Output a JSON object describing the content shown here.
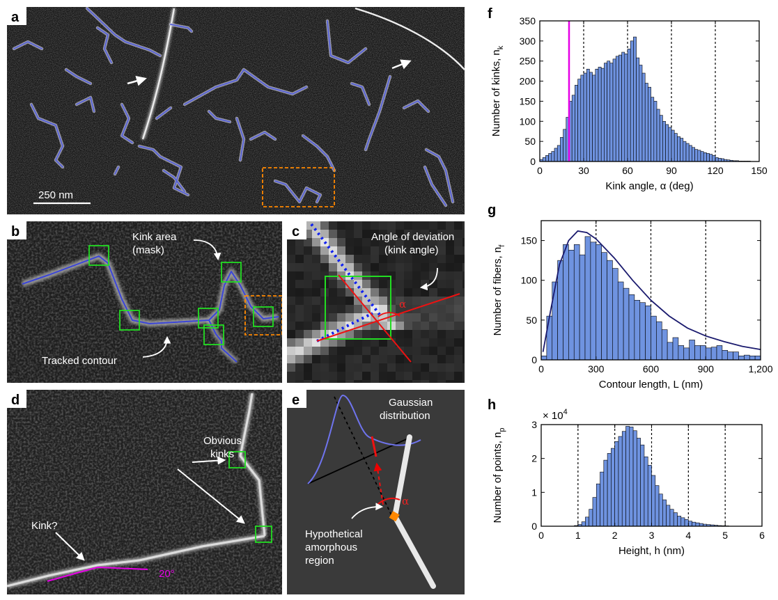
{
  "panels": {
    "a": {
      "label": "a",
      "scale_bar": "250 nm"
    },
    "b": {
      "label": "b",
      "kink_area": [
        "Kink area",
        "(mask)"
      ],
      "tracked": "Tracked contour"
    },
    "c": {
      "label": "c",
      "deviation": [
        "Angle of deviation",
        "(kink angle)"
      ],
      "alpha": "α"
    },
    "d": {
      "label": "d",
      "obvious": [
        "Obvious",
        "kinks"
      ],
      "kinkq": "Kink?",
      "angle": "20°"
    },
    "e": {
      "label": "e",
      "gaussian": [
        "Gaussian",
        "distribution"
      ],
      "alpha": "α",
      "region": [
        "Hypothetical",
        "amorphous",
        "region"
      ]
    },
    "f": {
      "label": "f"
    },
    "g": {
      "label": "g"
    },
    "h": {
      "label": "h"
    }
  },
  "colors": {
    "bar": "#6f93e0",
    "fit": "#1a1a6e",
    "marker": "#e600e6",
    "box": "#22dd22",
    "dash": "#ff8800",
    "trace": "#5560d8"
  },
  "chart_data": [
    {
      "id": "f",
      "type": "bar",
      "xlabel": "Kink angle, α (deg)",
      "ylabel": "Number of kinks, n",
      "ylabel_sub": "k",
      "xlim": [
        0,
        150
      ],
      "ylim": [
        0,
        350
      ],
      "xticks": [
        0,
        30,
        60,
        90,
        120,
        150
      ],
      "yticks": [
        0,
        50,
        100,
        150,
        200,
        250,
        300,
        350
      ],
      "vlines_dashed": [
        30,
        60,
        90,
        120
      ],
      "marker_line": 20,
      "bin_start": 0,
      "bin_width": 2,
      "values": [
        5,
        10,
        15,
        20,
        25,
        33,
        40,
        60,
        80,
        110,
        150,
        165,
        190,
        205,
        215,
        220,
        230,
        222,
        215,
        230,
        235,
        232,
        245,
        250,
        245,
        255,
        262,
        265,
        272,
        268,
        280,
        300,
        310,
        258,
        240,
        220,
        195,
        185,
        160,
        150,
        130,
        115,
        100,
        92,
        85,
        78,
        70,
        62,
        58,
        50,
        45,
        40,
        35,
        30,
        28,
        25,
        22,
        20,
        18,
        15,
        10,
        8,
        7,
        5,
        4,
        3,
        2,
        2,
        1,
        1,
        1,
        1,
        0,
        0,
        0
      ]
    },
    {
      "id": "g",
      "type": "bar",
      "xlabel": "Contour length, L (nm)",
      "ylabel": "Number of fibers, n",
      "ylabel_sub": "f",
      "xlim": [
        0,
        1200
      ],
      "ylim": [
        0,
        175
      ],
      "xticks": [
        0,
        300,
        600,
        900,
        1200
      ],
      "xtick_labels": [
        "0",
        "300",
        "600",
        "900",
        "1,200"
      ],
      "yticks": [
        0,
        50,
        100,
        150
      ],
      "vlines_dashed": [
        300,
        600,
        900
      ],
      "bin_start": 0,
      "bin_width": 30,
      "values": [
        5,
        55,
        98,
        125,
        145,
        138,
        145,
        132,
        155,
        148,
        145,
        135,
        125,
        115,
        98,
        90,
        82,
        75,
        72,
        68,
        55,
        48,
        38,
        22,
        28,
        18,
        15,
        25,
        18,
        18,
        15,
        16,
        18,
        12,
        10,
        10,
        5,
        6,
        5,
        5
      ],
      "fit": [
        [
          10,
          10
        ],
        [
          50,
          60
        ],
        [
          100,
          120
        ],
        [
          150,
          150
        ],
        [
          200,
          162
        ],
        [
          250,
          160
        ],
        [
          300,
          152
        ],
        [
          400,
          128
        ],
        [
          500,
          100
        ],
        [
          600,
          75
        ],
        [
          700,
          55
        ],
        [
          800,
          40
        ],
        [
          900,
          30
        ],
        [
          1000,
          23
        ],
        [
          1100,
          17
        ],
        [
          1200,
          13
        ]
      ]
    },
    {
      "id": "h",
      "type": "bar",
      "xlabel": "Height, h (nm)",
      "ylabel": "Number of points, n",
      "ylabel_sub": "p",
      "scale_label": "× 10",
      "scale_exp": "4",
      "xlim": [
        0,
        6
      ],
      "ylim": [
        0,
        3
      ],
      "xticks": [
        0,
        1,
        2,
        3,
        4,
        5,
        6
      ],
      "yticks": [
        0,
        1,
        2,
        3
      ],
      "vlines_dashed": [
        1,
        2,
        3,
        4,
        5
      ],
      "bin_start": 0.9,
      "bin_width": 0.1,
      "values": [
        0.02,
        0.05,
        0.13,
        0.27,
        0.5,
        0.85,
        1.25,
        1.6,
        1.95,
        2.15,
        2.3,
        2.5,
        2.65,
        2.8,
        2.95,
        2.93,
        2.82,
        2.6,
        2.4,
        2.05,
        1.8,
        1.5,
        1.2,
        0.95,
        0.78,
        0.62,
        0.5,
        0.4,
        0.3,
        0.25,
        0.2,
        0.15,
        0.12,
        0.1,
        0.08,
        0.06,
        0.05,
        0.04,
        0.03,
        0.02,
        0.015,
        0.01
      ]
    }
  ]
}
